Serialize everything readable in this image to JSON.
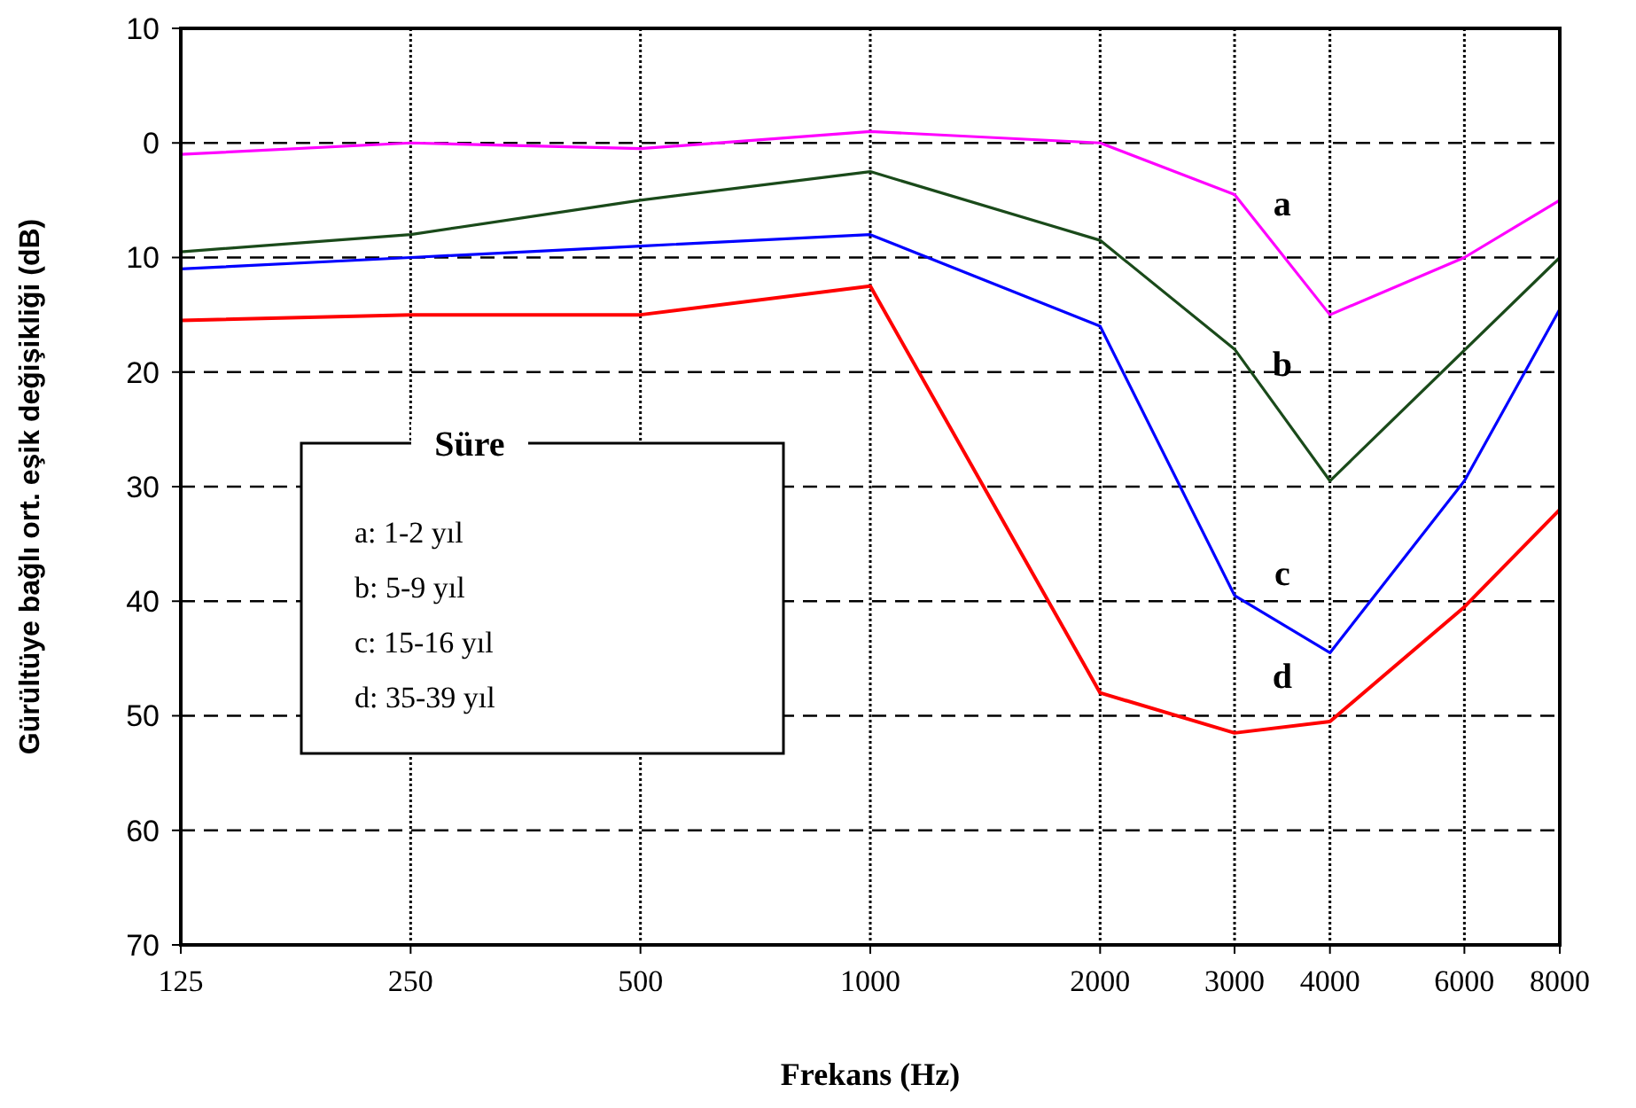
{
  "chart_data": {
    "type": "line",
    "xlabel": "Frekans (Hz)",
    "ylabel": "Gürültüye bağlı ort. eşik değişikliği (dB)",
    "x": [
      125,
      250,
      500,
      1000,
      2000,
      3000,
      4000,
      6000,
      8000
    ],
    "series": [
      {
        "name": "a",
        "color": "#ff00ff",
        "values": [
          1,
          0,
          0.5,
          -1,
          0,
          4.5,
          15,
          10,
          5
        ]
      },
      {
        "name": "b",
        "color": "#1a4a1a",
        "x": [
          125,
          250,
          500,
          1000,
          2000,
          3000,
          4000,
          8000
        ],
        "values": [
          9.5,
          8,
          5,
          2.5,
          8.5,
          18,
          29.5,
          10
        ]
      },
      {
        "name": "c",
        "color": "#0000ff",
        "values": [
          11,
          10,
          9,
          8,
          16,
          39.5,
          44.5,
          29.5,
          14.5
        ]
      },
      {
        "name": "d",
        "color": "#ff0000",
        "values": [
          15.5,
          15,
          15,
          12.5,
          48,
          51.5,
          50.5,
          40.5,
          32
        ]
      }
    ],
    "log": "x",
    "xlim": [
      125,
      8000
    ],
    "xticks": [
      125,
      250,
      500,
      1000,
      2000,
      3000,
      4000,
      6000,
      8000
    ],
    "ylim": [
      70,
      -10
    ],
    "yticks": [
      {
        "value": -10,
        "label": "10"
      },
      0,
      10,
      20,
      30,
      40,
      50,
      60,
      70
    ],
    "grid": true,
    "marker": "none",
    "line_style": "solid",
    "annotations": [
      "Süre",
      "a: 1-2 yıl",
      "b: 5-9 yıl",
      "c: 15-16 yıl",
      "d: 35-39 yıl"
    ]
  }
}
